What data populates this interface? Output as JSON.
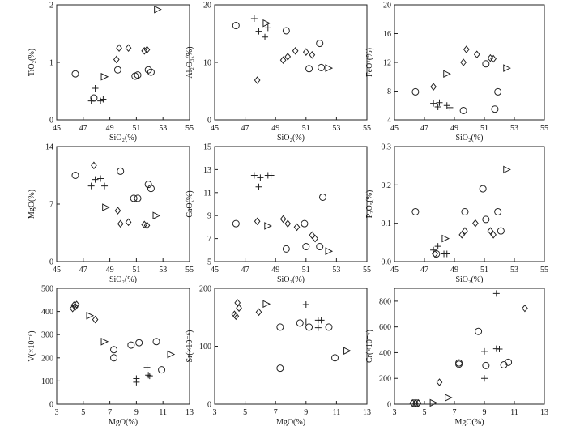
{
  "chart_data": [
    {
      "type": "scatter",
      "xlabel": "SiO₂(%)",
      "ylabel": "TiO₂(%)",
      "xlim": [
        45,
        55
      ],
      "ylim": [
        0,
        2
      ],
      "xticks": [
        "45",
        "47",
        "49",
        "51",
        "53",
        "55"
      ],
      "yticks": [
        "0",
        "1",
        "2"
      ],
      "series": [
        {
          "marker": "circle",
          "points": [
            [
              46.4,
              0.8
            ],
            [
              49.6,
              0.87
            ],
            [
              50.9,
              0.76
            ],
            [
              51.1,
              0.78
            ],
            [
              51.9,
              0.87
            ],
            [
              52.1,
              0.83
            ],
            [
              47.8,
              0.38
            ]
          ]
        },
        {
          "marker": "plus",
          "points": [
            [
              47.6,
              0.33
            ],
            [
              47.9,
              0.55
            ],
            [
              48.3,
              0.33
            ],
            [
              48.5,
              0.36
            ]
          ]
        },
        {
          "marker": "diamond",
          "points": [
            [
              49.5,
              1.05
            ],
            [
              49.7,
              1.25
            ],
            [
              50.4,
              1.25
            ],
            [
              51.6,
              1.2
            ],
            [
              51.8,
              1.22
            ]
          ]
        },
        {
          "marker": "triangle",
          "points": [
            [
              48.6,
              0.75
            ],
            [
              52.6,
              1.92
            ]
          ]
        }
      ]
    },
    {
      "type": "scatter",
      "xlabel": "SiO₂(%)",
      "ylabel": "Al₂O₃(%)",
      "xlim": [
        45,
        55
      ],
      "ylim": [
        0,
        20
      ],
      "xticks": [
        "45",
        "47",
        "49",
        "51",
        "53",
        "55"
      ],
      "yticks": [
        "0",
        "10",
        "20"
      ],
      "series": [
        {
          "marker": "circle",
          "points": [
            [
              46.4,
              16.4
            ],
            [
              49.7,
              15.5
            ],
            [
              51.2,
              8.9
            ],
            [
              51.9,
              13.3
            ],
            [
              52.0,
              9.1
            ]
          ]
        },
        {
          "marker": "plus",
          "points": [
            [
              47.6,
              17.6
            ],
            [
              47.9,
              15.4
            ],
            [
              48.3,
              14.4
            ],
            [
              48.5,
              16.0
            ]
          ]
        },
        {
          "marker": "diamond",
          "points": [
            [
              47.8,
              6.9
            ],
            [
              49.5,
              10.4
            ],
            [
              49.8,
              11.0
            ],
            [
              50.3,
              12.0
            ],
            [
              51.0,
              11.8
            ],
            [
              51.4,
              11.3
            ]
          ]
        },
        {
          "marker": "triangle",
          "points": [
            [
              48.4,
              16.8
            ],
            [
              52.5,
              9.0
            ]
          ]
        }
      ]
    },
    {
      "type": "scatter",
      "xlabel": "SiO₂(%)",
      "ylabel": "FeOᵀ(%)",
      "xlim": [
        45,
        55
      ],
      "ylim": [
        4,
        20
      ],
      "xticks": [
        "45",
        "47",
        "49",
        "51",
        "53",
        "55"
      ],
      "yticks": [
        "4",
        "8",
        "12",
        "16",
        "20"
      ],
      "series": [
        {
          "marker": "circle",
          "points": [
            [
              46.4,
              7.9
            ],
            [
              49.6,
              5.3
            ],
            [
              51.1,
              11.8
            ],
            [
              51.7,
              5.5
            ],
            [
              51.9,
              7.9
            ]
          ]
        },
        {
          "marker": "plus",
          "points": [
            [
              47.6,
              6.3
            ],
            [
              47.9,
              5.8
            ],
            [
              48.0,
              6.4
            ],
            [
              48.5,
              6.0
            ],
            [
              48.7,
              5.7
            ]
          ]
        },
        {
          "marker": "diamond",
          "points": [
            [
              47.6,
              8.6
            ],
            [
              49.6,
              12.0
            ],
            [
              49.8,
              13.8
            ],
            [
              50.5,
              13.1
            ],
            [
              51.4,
              12.6
            ],
            [
              51.6,
              12.5
            ]
          ]
        },
        {
          "marker": "triangle",
          "points": [
            [
              48.5,
              10.4
            ],
            [
              52.5,
              11.2
            ]
          ]
        }
      ]
    },
    {
      "type": "scatter",
      "xlabel": "SiO₂(%)",
      "ylabel": "MgO(%)",
      "xlim": [
        45,
        55
      ],
      "ylim": [
        0,
        14
      ],
      "xticks": [
        "45",
        "47",
        "49",
        "51",
        "53",
        "55"
      ],
      "yticks": [
        "0",
        "7",
        "14"
      ],
      "series": [
        {
          "marker": "circle",
          "points": [
            [
              46.4,
              10.5
            ],
            [
              49.8,
              11.0
            ],
            [
              50.8,
              7.7
            ],
            [
              51.1,
              7.7
            ],
            [
              51.9,
              9.4
            ],
            [
              52.1,
              8.9
            ]
          ]
        },
        {
          "marker": "plus",
          "points": [
            [
              47.6,
              9.2
            ],
            [
              47.9,
              10.0
            ],
            [
              48.3,
              10.1
            ],
            [
              48.6,
              9.2
            ]
          ]
        },
        {
          "marker": "diamond",
          "points": [
            [
              47.8,
              11.7
            ],
            [
              49.6,
              6.2
            ],
            [
              49.8,
              4.6
            ],
            [
              50.4,
              4.8
            ],
            [
              51.6,
              4.5
            ],
            [
              51.8,
              4.4
            ]
          ]
        },
        {
          "marker": "triangle",
          "points": [
            [
              48.7,
              6.6
            ],
            [
              52.5,
              5.6
            ]
          ]
        }
      ]
    },
    {
      "type": "scatter",
      "xlabel": "SiO₂(%)",
      "ylabel": "CaO(%)",
      "xlim": [
        45,
        55
      ],
      "ylim": [
        5,
        15
      ],
      "xticks": [
        "45",
        "47",
        "49",
        "51",
        "53",
        "55"
      ],
      "yticks": [
        "5",
        "7",
        "9",
        "11",
        "13",
        "15"
      ],
      "series": [
        {
          "marker": "circle",
          "points": [
            [
              46.4,
              8.3
            ],
            [
              49.7,
              6.1
            ],
            [
              51.0,
              6.3
            ],
            [
              50.9,
              8.3
            ],
            [
              51.9,
              6.3
            ],
            [
              52.1,
              10.6
            ]
          ]
        },
        {
          "marker": "plus",
          "points": [
            [
              47.6,
              12.5
            ],
            [
              47.9,
              11.5
            ],
            [
              48.0,
              12.3
            ],
            [
              48.5,
              12.5
            ],
            [
              48.7,
              12.5
            ]
          ]
        },
        {
          "marker": "diamond",
          "points": [
            [
              47.8,
              8.5
            ],
            [
              49.5,
              8.7
            ],
            [
              49.8,
              8.3
            ],
            [
              50.4,
              8.0
            ],
            [
              51.4,
              7.3
            ],
            [
              51.6,
              7.0
            ]
          ]
        },
        {
          "marker": "triangle",
          "points": [
            [
              48.5,
              8.1
            ],
            [
              52.5,
              5.9
            ]
          ]
        }
      ]
    },
    {
      "type": "scatter",
      "xlabel": "SiO₂(%)",
      "ylabel": "P₂O₅(%)",
      "xlim": [
        45,
        55
      ],
      "ylim": [
        0,
        0.3
      ],
      "xticks": [
        "45",
        "47",
        "49",
        "51",
        "53",
        "55"
      ],
      "yticks": [
        "0.0",
        "0.1",
        "0.2",
        "0.3"
      ],
      "series": [
        {
          "marker": "circle",
          "points": [
            [
              46.4,
              0.13
            ],
            [
              47.8,
              0.02
            ],
            [
              49.7,
              0.13
            ],
            [
              50.9,
              0.19
            ],
            [
              51.1,
              0.11
            ],
            [
              51.9,
              0.13
            ],
            [
              52.1,
              0.08
            ]
          ]
        },
        {
          "marker": "plus",
          "points": [
            [
              47.6,
              0.03
            ],
            [
              47.9,
              0.04
            ],
            [
              48.3,
              0.02
            ],
            [
              48.5,
              0.02
            ]
          ]
        },
        {
          "marker": "diamond",
          "points": [
            [
              47.7,
              0.02
            ],
            [
              49.5,
              0.07
            ],
            [
              49.7,
              0.08
            ],
            [
              50.4,
              0.1
            ],
            [
              51.4,
              0.08
            ],
            [
              51.6,
              0.07
            ]
          ]
        },
        {
          "marker": "triangle",
          "points": [
            [
              48.4,
              0.06
            ],
            [
              52.5,
              0.24
            ]
          ]
        }
      ]
    },
    {
      "type": "scatter",
      "xlabel": "MgO(%)",
      "ylabel": "V(×10⁻⁶)",
      "xlim": [
        3,
        13
      ],
      "ylim": [
        0,
        500
      ],
      "xticks": [
        "3",
        "5",
        "7",
        "9",
        "11",
        "13"
      ],
      "yticks": [
        "0",
        "100",
        "200",
        "300",
        "400",
        "500"
      ],
      "series": [
        {
          "marker": "circle",
          "points": [
            [
              7.3,
              235
            ],
            [
              7.3,
              200
            ],
            [
              8.6,
              255
            ],
            [
              9.2,
              265
            ],
            [
              10.5,
              270
            ],
            [
              10.9,
              148
            ]
          ]
        },
        {
          "marker": "plus",
          "points": [
            [
              9.0,
              110
            ],
            [
              9.0,
              95
            ],
            [
              9.8,
              158
            ],
            [
              9.9,
              125
            ],
            [
              10.0,
              122
            ]
          ]
        },
        {
          "marker": "diamond",
          "points": [
            [
              4.2,
              413
            ],
            [
              4.3,
              427
            ],
            [
              4.5,
              430
            ],
            [
              4.4,
              420
            ],
            [
              5.9,
              365
            ]
          ]
        },
        {
          "marker": "triangle",
          "points": [
            [
              5.5,
              382
            ],
            [
              6.6,
              270
            ],
            [
              11.6,
              215
            ]
          ]
        }
      ]
    },
    {
      "type": "scatter",
      "xlabel": "MgO(%)",
      "ylabel": "Sr(×10⁻⁶)",
      "xlim": [
        3,
        13
      ],
      "ylim": [
        0,
        200
      ],
      "xticks": [
        "3",
        "5",
        "7",
        "9",
        "11",
        "13"
      ],
      "yticks": [
        "0",
        "100",
        "200"
      ],
      "series": [
        {
          "marker": "circle",
          "points": [
            [
              7.3,
              133
            ],
            [
              7.3,
              62
            ],
            [
              8.6,
              140
            ],
            [
              9.2,
              133
            ],
            [
              10.5,
              133
            ],
            [
              10.9,
              80
            ]
          ]
        },
        {
          "marker": "plus",
          "points": [
            [
              9.0,
              172
            ],
            [
              9.0,
              142
            ],
            [
              9.8,
              132
            ],
            [
              9.8,
              145
            ],
            [
              10.0,
              145
            ]
          ]
        },
        {
          "marker": "diamond",
          "points": [
            [
              4.3,
              155
            ],
            [
              4.4,
              152
            ],
            [
              4.5,
              175
            ],
            [
              4.6,
              166
            ],
            [
              5.9,
              159
            ]
          ]
        },
        {
          "marker": "triangle",
          "points": [
            [
              6.4,
              173
            ],
            [
              11.7,
              92
            ]
          ]
        }
      ]
    },
    {
      "type": "scatter",
      "xlabel": "MgO(%)",
      "ylabel": "Cr(×10⁻⁶)",
      "xlim": [
        3,
        13
      ],
      "ylim": [
        0,
        900
      ],
      "xticks": [
        "3",
        "5",
        "7",
        "9",
        "11",
        "13"
      ],
      "yticks": [
        "0",
        "200",
        "400",
        "600",
        "800"
      ],
      "series": [
        {
          "marker": "circle",
          "points": [
            [
              4.3,
              8
            ],
            [
              4.5,
              8
            ],
            [
              7.3,
              310
            ],
            [
              7.3,
              320
            ],
            [
              8.6,
              565
            ],
            [
              9.1,
              300
            ],
            [
              10.3,
              305
            ],
            [
              10.6,
              325
            ]
          ]
        },
        {
          "marker": "plus",
          "points": [
            [
              9.0,
              410
            ],
            [
              9.0,
              200
            ],
            [
              9.8,
              860
            ],
            [
              9.8,
              430
            ],
            [
              10.0,
              428
            ]
          ]
        },
        {
          "marker": "diamond",
          "points": [
            [
              4.2,
              8
            ],
            [
              4.4,
              8
            ],
            [
              4.6,
              8
            ],
            [
              6.0,
              170
            ],
            [
              11.7,
              745
            ]
          ]
        },
        {
          "marker": "triangle",
          "points": [
            [
              5.6,
              10
            ],
            [
              6.6,
              50
            ]
          ]
        }
      ]
    }
  ]
}
